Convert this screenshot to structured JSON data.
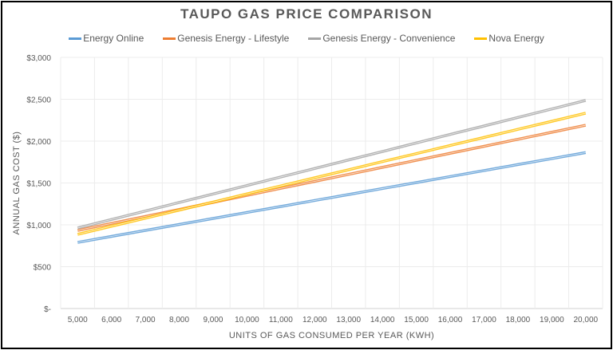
{
  "chart_data": {
    "type": "line",
    "title": "TAUPO GAS PRICE COMPARISON",
    "xlabel": "UNITS OF GAS CONSUMED PER YEAR (KWH)",
    "ylabel": "ANNUAL GAS COST ($)",
    "ylim": [
      0,
      3000
    ],
    "yticks": [
      0,
      500,
      1000,
      1500,
      2000,
      2500,
      3000
    ],
    "ytick_labels": [
      "$-",
      "$500",
      "$1,000",
      "$1,500",
      "$2,000",
      "$2,500",
      "$3,000"
    ],
    "categories": [
      "5,000",
      "6,000",
      "7,000",
      "8,000",
      "9,000",
      "10,000",
      "11,000",
      "12,000",
      "13,000",
      "14,000",
      "15,000",
      "16,000",
      "17,000",
      "18,000",
      "19,000",
      "20,000"
    ],
    "grid": "vertical and horizontal",
    "legend_position": "top",
    "series": [
      {
        "name": "Energy Online",
        "color": "#5B9BD5",
        "values": [
          790,
          862,
          933,
          1005,
          1076,
          1148,
          1219,
          1291,
          1362,
          1434,
          1505,
          1577,
          1648,
          1720,
          1791,
          1863
        ]
      },
      {
        "name": "Genesis Energy - Lifestyle",
        "color": "#ED7D31",
        "values": [
          933,
          1017,
          1100,
          1184,
          1268,
          1352,
          1436,
          1519,
          1603,
          1687,
          1771,
          1855,
          1938,
          2022,
          2106,
          2190
        ]
      },
      {
        "name": "Genesis Energy - Convenience",
        "color": "#A5A5A5",
        "values": [
          962,
          1064,
          1165,
          1267,
          1368,
          1470,
          1572,
          1673,
          1775,
          1876,
          1978,
          2080,
          2181,
          2283,
          2384,
          2486
        ]
      },
      {
        "name": "Nova Energy",
        "color": "#FFC000",
        "values": [
          886,
          983,
          1079,
          1176,
          1272,
          1369,
          1465,
          1562,
          1658,
          1755,
          1851,
          1948,
          2044,
          2141,
          2237,
          2334
        ]
      }
    ]
  }
}
